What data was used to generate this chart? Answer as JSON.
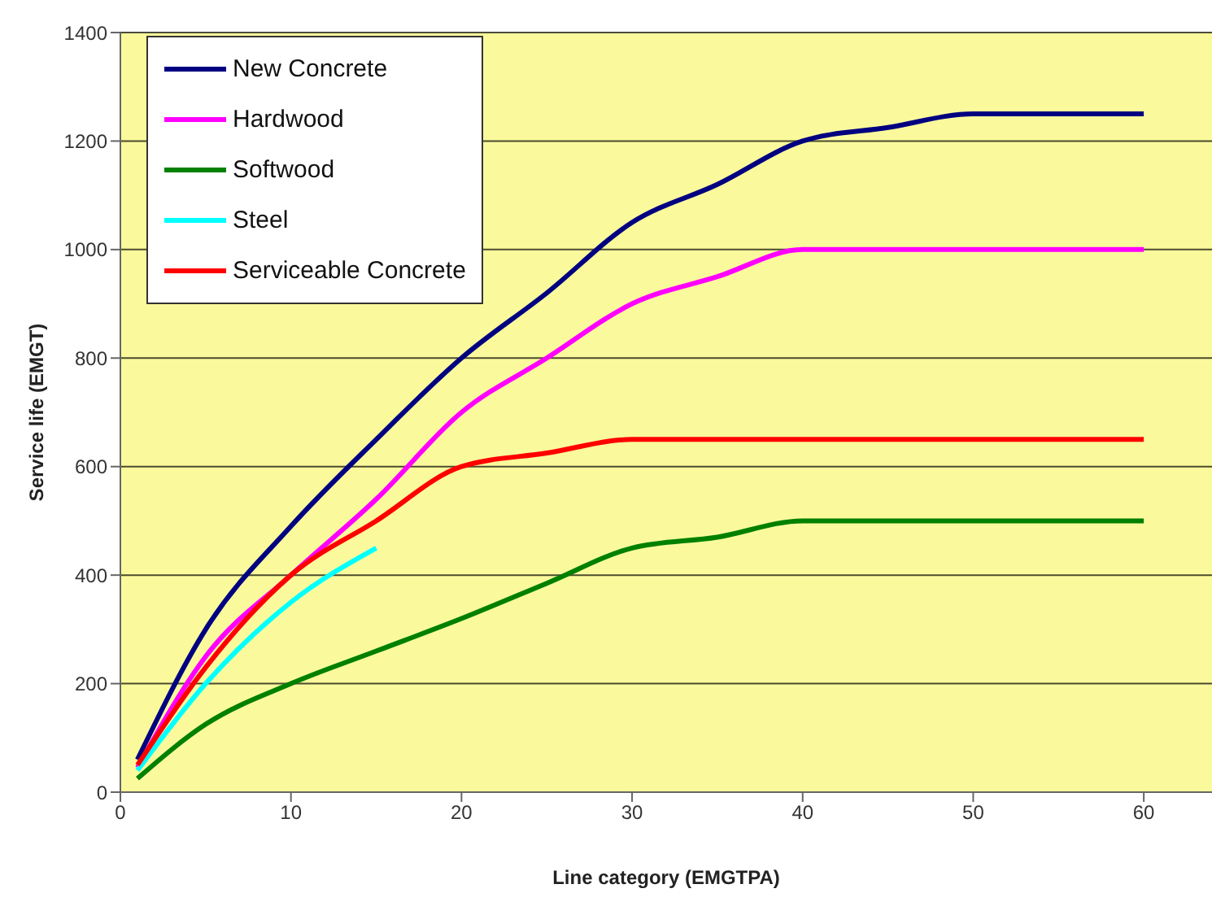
{
  "chart_data": {
    "type": "line",
    "xlabel": "Line category (EMGTPA)",
    "ylabel": "Service life (EMGT)",
    "xlim": [
      0,
      64
    ],
    "xticks": [
      0,
      10,
      20,
      30,
      40,
      50,
      60
    ],
    "ylim": [
      0,
      1400
    ],
    "yticks": [
      0,
      200,
      400,
      600,
      800,
      1000,
      1200,
      1400
    ],
    "grid": "y",
    "legend": "top left",
    "marker": "none",
    "line_style": "solid",
    "series": [
      {
        "name": "New Concrete",
        "color": "#000080",
        "x": [
          1,
          5,
          10,
          15,
          20,
          25,
          30,
          35,
          40,
          45,
          50,
          55,
          60
        ],
        "values": [
          60,
          300,
          490,
          650,
          800,
          920,
          1050,
          1120,
          1200,
          1225,
          1250,
          1250,
          1250
        ]
      },
      {
        "name": "Hardwood",
        "color": "#ff00ff",
        "x": [
          1,
          5,
          10,
          15,
          20,
          25,
          30,
          35,
          40,
          45,
          60
        ],
        "values": [
          45,
          250,
          400,
          540,
          700,
          800,
          900,
          950,
          1000,
          1000,
          1000
        ]
      },
      {
        "name": "Softwood",
        "color": "#008000",
        "x": [
          1,
          5,
          10,
          15,
          20,
          25,
          30,
          35,
          40,
          45,
          60
        ],
        "values": [
          25,
          125,
          200,
          260,
          320,
          385,
          450,
          470,
          500,
          500,
          500
        ]
      },
      {
        "name": "Steel",
        "color": "#00ffff",
        "x": [
          1,
          5,
          10,
          15
        ],
        "values": [
          40,
          200,
          350,
          450
        ]
      },
      {
        "name": "Serviceable Concrete",
        "color": "#ff0000",
        "x": [
          1,
          5,
          10,
          15,
          20,
          25,
          30,
          35,
          60
        ],
        "values": [
          50,
          230,
          400,
          500,
          600,
          625,
          650,
          650,
          650
        ]
      }
    ]
  }
}
